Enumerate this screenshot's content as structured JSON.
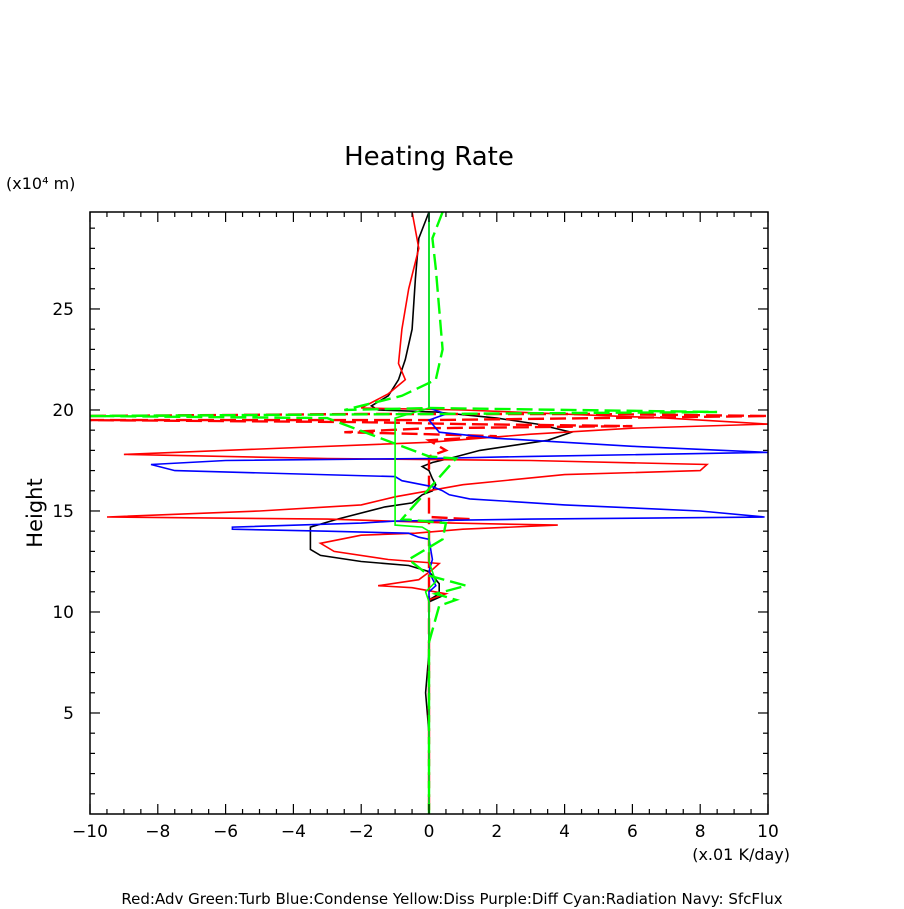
{
  "chart_data": {
    "type": "line",
    "title": "Heating Rate",
    "xlabel": "(x.01 K/day)",
    "ylabel": "Height",
    "yunit": "(x10⁴ m)",
    "xlim": [
      -10,
      10
    ],
    "ylim": [
      0,
      29.8
    ],
    "xticks": [
      "−10",
      "−8",
      "−6",
      "−4",
      "−2",
      "0",
      "2",
      "4",
      "6",
      "8",
      "10"
    ],
    "yticks": [
      "5",
      "10",
      "15",
      "20",
      "25"
    ],
    "legend_text": "Red:Adv  Green:Turb  Blue:Condense  Yellow:Diss  Purple:Diff  Cyan:Radiation  Navy: SfcFlux",
    "series": [
      {
        "name": "Black",
        "color": "#000000",
        "dash": "none",
        "points": [
          [
            0,
            29.8
          ],
          [
            -0.3,
            28.5
          ],
          [
            -0.4,
            26.5
          ],
          [
            -0.5,
            24
          ],
          [
            -0.7,
            22.5
          ],
          [
            -0.9,
            21.5
          ],
          [
            -1.2,
            20.7
          ],
          [
            -1.7,
            20.2
          ],
          [
            -1.5,
            20
          ],
          [
            0.2,
            19.9
          ],
          [
            2,
            19.6
          ],
          [
            3.2,
            19.3
          ],
          [
            4.2,
            18.9
          ],
          [
            3.5,
            18.5
          ],
          [
            1.5,
            18
          ],
          [
            0.6,
            17.6
          ],
          [
            0.1,
            17.4
          ],
          [
            -0.2,
            17.2
          ],
          [
            0,
            17
          ],
          [
            0.1,
            16.6
          ],
          [
            0.2,
            16.3
          ],
          [
            0.1,
            16
          ],
          [
            -0.2,
            15.8
          ],
          [
            -0.5,
            15.4
          ],
          [
            -1.3,
            15.2
          ],
          [
            -2.7,
            14.6
          ],
          [
            -3.5,
            14.2
          ],
          [
            -3.5,
            13.7
          ],
          [
            -3.5,
            13.1
          ],
          [
            -3.2,
            12.8
          ],
          [
            -2,
            12.5
          ],
          [
            -0.6,
            12.3
          ],
          [
            0,
            12
          ],
          [
            0.3,
            11.4
          ],
          [
            0.3,
            10.9
          ],
          [
            0,
            10.6
          ],
          [
            0.4,
            10.8
          ],
          [
            0,
            10.5
          ],
          [
            0,
            8
          ],
          [
            -0.1,
            6
          ],
          [
            0,
            4
          ],
          [
            0,
            0
          ]
        ]
      },
      {
        "name": "Red solid",
        "color": "#ff0000",
        "dash": "none",
        "points": [
          [
            -0.5,
            29.8
          ],
          [
            -0.3,
            28
          ],
          [
            -0.6,
            26
          ],
          [
            -0.8,
            24
          ],
          [
            -0.9,
            22.3
          ],
          [
            -0.7,
            21.5
          ],
          [
            -1.2,
            20.8
          ],
          [
            -2,
            20.1
          ],
          [
            1,
            20
          ],
          [
            7,
            19.6
          ],
          [
            9,
            19.4
          ],
          [
            10,
            19.3
          ],
          [
            6,
            19.1
          ],
          [
            3,
            18.8
          ],
          [
            0,
            18.4
          ],
          [
            -9,
            17.8
          ],
          [
            -3,
            17.6
          ],
          [
            3,
            17.5
          ],
          [
            8.2,
            17.3
          ],
          [
            8,
            17
          ],
          [
            4,
            16.8
          ],
          [
            1,
            16.3
          ],
          [
            -1,
            15.7
          ],
          [
            -2,
            15.3
          ],
          [
            -5,
            15
          ],
          [
            -9.5,
            14.7
          ],
          [
            -3,
            14.6
          ],
          [
            0.7,
            14.4
          ],
          [
            3.8,
            14.3
          ],
          [
            1,
            14.1
          ],
          [
            -0.4,
            13.9
          ],
          [
            -2,
            13.8
          ],
          [
            -3.2,
            13.4
          ],
          [
            -2.8,
            13
          ],
          [
            -1.2,
            12.6
          ],
          [
            0.3,
            12.4
          ],
          [
            0.1,
            12.1
          ],
          [
            -0.3,
            11.6
          ],
          [
            -1.5,
            11.3
          ],
          [
            -0.5,
            11.2
          ],
          [
            0.5,
            10.9
          ],
          [
            0,
            10.6
          ],
          [
            0,
            6
          ],
          [
            0,
            0
          ]
        ]
      },
      {
        "name": "Red dashed",
        "color": "#ff0000",
        "dash": "16,6",
        "points": [
          [
            -10,
            19.7
          ],
          [
            -2,
            19.8
          ],
          [
            5,
            19.8
          ],
          [
            10,
            19.7
          ],
          [
            5,
            19.6
          ],
          [
            0,
            19.5
          ],
          [
            -10,
            19.5
          ],
          [
            -2,
            19.4
          ],
          [
            1,
            19.3
          ],
          [
            6,
            19.2
          ],
          [
            0,
            19.1
          ],
          [
            -2.5,
            18.9
          ],
          [
            0,
            18.8
          ],
          [
            2,
            18.7
          ],
          [
            0,
            18.5
          ],
          [
            0.5,
            18
          ],
          [
            0,
            17.7
          ],
          [
            0,
            14.7
          ],
          [
            1.2,
            14.6
          ],
          [
            0,
            14.5
          ],
          [
            0,
            0
          ]
        ]
      },
      {
        "name": "Blue",
        "color": "#0000ff",
        "dash": "none",
        "points": [
          [
            0,
            29.8
          ],
          [
            0,
            20.1
          ],
          [
            0.5,
            19.8
          ],
          [
            0,
            19.5
          ],
          [
            0.3,
            18.9
          ],
          [
            2,
            18.6
          ],
          [
            6,
            18.2
          ],
          [
            10,
            17.9
          ],
          [
            3,
            17.7
          ],
          [
            0,
            17.6
          ],
          [
            -6,
            17.5
          ],
          [
            -8.2,
            17.3
          ],
          [
            -7.5,
            17
          ],
          [
            -1,
            16.7
          ],
          [
            -0.8,
            16.5
          ],
          [
            0.1,
            16.2
          ],
          [
            0.4,
            16
          ],
          [
            0.6,
            15.8
          ],
          [
            1.2,
            15.6
          ],
          [
            4,
            15.3
          ],
          [
            8,
            15
          ],
          [
            9.9,
            14.7
          ],
          [
            3,
            14.6
          ],
          [
            -1,
            14.5
          ],
          [
            -2,
            14.4
          ],
          [
            -5.8,
            14.2
          ],
          [
            -5.8,
            14.1
          ],
          [
            -3,
            14
          ],
          [
            -0.6,
            13.9
          ],
          [
            -0.3,
            13.7
          ],
          [
            0,
            13.6
          ],
          [
            0.1,
            12.6
          ],
          [
            0,
            12
          ],
          [
            0.2,
            11.3
          ],
          [
            0,
            11
          ],
          [
            0,
            8
          ],
          [
            0,
            0
          ]
        ]
      },
      {
        "name": "Green solid",
        "color": "#00ff00",
        "dash": "none",
        "points": [
          [
            0,
            29.8
          ],
          [
            0,
            20.1
          ],
          [
            -1,
            19.6
          ],
          [
            -1,
            19.2
          ],
          [
            -1,
            14.3
          ],
          [
            -0.2,
            14.2
          ],
          [
            0,
            14
          ],
          [
            0,
            12.5
          ],
          [
            0.2,
            11.5
          ],
          [
            -0.1,
            11
          ],
          [
            0,
            10.5
          ],
          [
            0,
            7
          ],
          [
            0,
            0
          ]
        ]
      },
      {
        "name": "Green dashed",
        "color": "#00ff00",
        "dash": "16,6",
        "points": [
          [
            0.4,
            29.8
          ],
          [
            0.1,
            28.5
          ],
          [
            0.2,
            27
          ],
          [
            0.3,
            25
          ],
          [
            0.4,
            23
          ],
          [
            0.2,
            21.5
          ],
          [
            -0.8,
            20.7
          ],
          [
            -2.5,
            20
          ],
          [
            0,
            20.1
          ],
          [
            8.5,
            19.9
          ],
          [
            0,
            19.8
          ],
          [
            -10,
            19.7
          ],
          [
            -3,
            19.6
          ],
          [
            0,
            17.7
          ],
          [
            0.8,
            17.6
          ],
          [
            -0.8,
            14.6
          ],
          [
            0.5,
            14.4
          ],
          [
            0.4,
            13.6
          ],
          [
            -0.6,
            12.6
          ],
          [
            0,
            11.8
          ],
          [
            1.1,
            11.3
          ],
          [
            0.2,
            10.9
          ],
          [
            0.8,
            10.6
          ],
          [
            0.3,
            10.3
          ],
          [
            0,
            8.5
          ],
          [
            0,
            6
          ],
          [
            0,
            0
          ]
        ]
      }
    ]
  }
}
